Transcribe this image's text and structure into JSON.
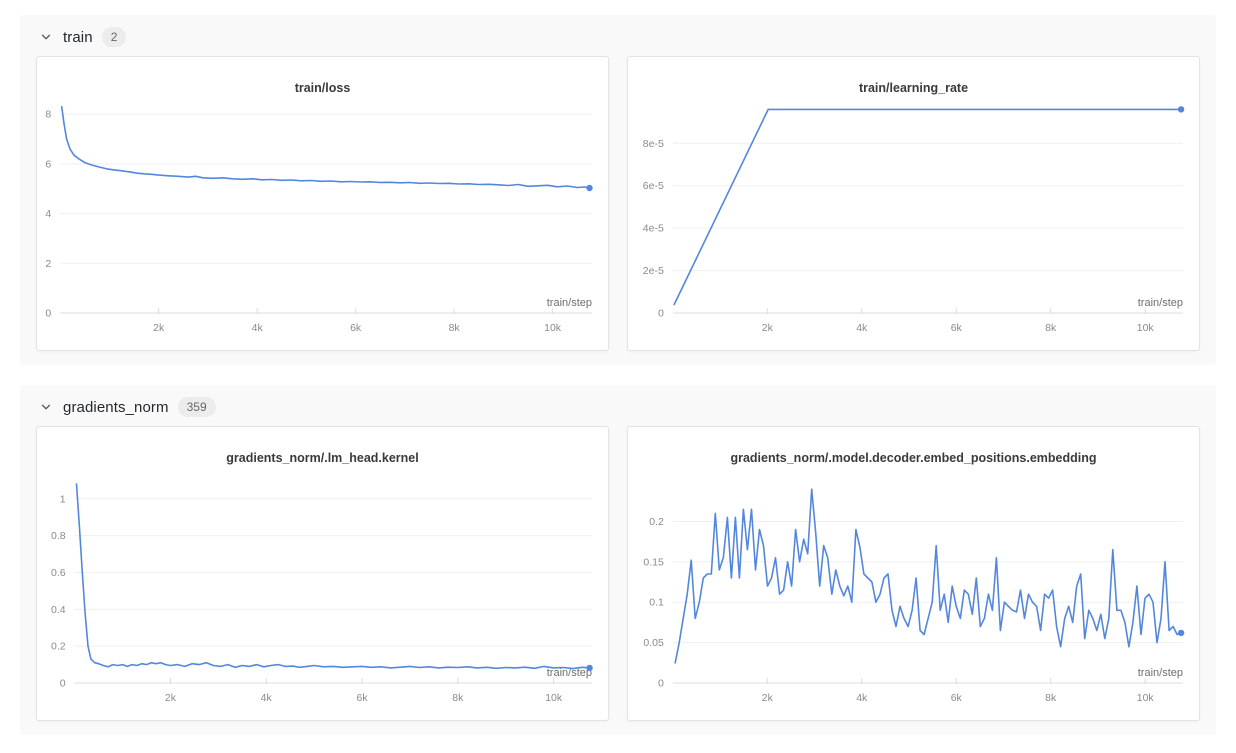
{
  "colors": {
    "line": "#5387dd",
    "grid": "#efefef",
    "axis": "#dcdcdc",
    "tick_label": "#8a8a8a",
    "axis_label": "#6e6e6e",
    "section_bg": "#f9f9f9",
    "card_border": "#e3e3e3"
  },
  "sections": [
    {
      "name": "train",
      "count": "2",
      "chart_indexes": [
        0,
        1
      ]
    },
    {
      "name": "gradients_norm",
      "count": "359",
      "chart_indexes": [
        2,
        3
      ]
    }
  ],
  "chart_data": [
    {
      "type": "line",
      "title": "train/loss",
      "xlabel": "train/step",
      "x_max": 10800,
      "y_max": 8.45,
      "grid": true,
      "end_dot": true,
      "x_ticks": [
        {
          "v": 2000,
          "label": "2k"
        },
        {
          "v": 4000,
          "label": "4k"
        },
        {
          "v": 6000,
          "label": "6k"
        },
        {
          "v": 8000,
          "label": "8k"
        },
        {
          "v": 10000,
          "label": "10k"
        }
      ],
      "y_ticks": [
        {
          "v": 0,
          "label": "0"
        },
        {
          "v": 2,
          "label": "2"
        },
        {
          "v": 4,
          "label": "4"
        },
        {
          "v": 6,
          "label": "6"
        },
        {
          "v": 8,
          "label": "8"
        }
      ],
      "points": [
        [
          30,
          8.3
        ],
        [
          80,
          7.6
        ],
        [
          130,
          7.0
        ],
        [
          200,
          6.6
        ],
        [
          280,
          6.35
        ],
        [
          380,
          6.2
        ],
        [
          500,
          6.05
        ],
        [
          650,
          5.95
        ],
        [
          800,
          5.87
        ],
        [
          950,
          5.8
        ],
        [
          1100,
          5.76
        ],
        [
          1250,
          5.72
        ],
        [
          1400,
          5.68
        ],
        [
          1550,
          5.63
        ],
        [
          1700,
          5.6
        ],
        [
          1850,
          5.58
        ],
        [
          2000,
          5.55
        ],
        [
          2200,
          5.52
        ],
        [
          2400,
          5.5
        ],
        [
          2600,
          5.47
        ],
        [
          2750,
          5.5
        ],
        [
          2900,
          5.44
        ],
        [
          3100,
          5.42
        ],
        [
          3300,
          5.44
        ],
        [
          3500,
          5.4
        ],
        [
          3700,
          5.38
        ],
        [
          3900,
          5.4
        ],
        [
          4100,
          5.36
        ],
        [
          4300,
          5.37
        ],
        [
          4500,
          5.34
        ],
        [
          4700,
          5.35
        ],
        [
          4900,
          5.32
        ],
        [
          5100,
          5.33
        ],
        [
          5300,
          5.3
        ],
        [
          5500,
          5.31
        ],
        [
          5700,
          5.28
        ],
        [
          5900,
          5.29
        ],
        [
          6100,
          5.27
        ],
        [
          6300,
          5.28
        ],
        [
          6500,
          5.25
        ],
        [
          6700,
          5.26
        ],
        [
          6900,
          5.24
        ],
        [
          7100,
          5.25
        ],
        [
          7300,
          5.22
        ],
        [
          7500,
          5.23
        ],
        [
          7700,
          5.21
        ],
        [
          7900,
          5.22
        ],
        [
          8100,
          5.19
        ],
        [
          8300,
          5.2
        ],
        [
          8500,
          5.17
        ],
        [
          8700,
          5.18
        ],
        [
          8900,
          5.16
        ],
        [
          9100,
          5.13
        ],
        [
          9300,
          5.17
        ],
        [
          9500,
          5.1
        ],
        [
          9700,
          5.12
        ],
        [
          9900,
          5.14
        ],
        [
          10100,
          5.08
        ],
        [
          10300,
          5.11
        ],
        [
          10500,
          5.05
        ],
        [
          10650,
          5.07
        ],
        [
          10750,
          5.03
        ]
      ]
    },
    {
      "type": "line",
      "title": "train/learning_rate",
      "xlabel": "train/step",
      "x_max": 10800,
      "y_max": 9.9e-05,
      "grid": true,
      "end_dot": true,
      "x_ticks": [
        {
          "v": 2000,
          "label": "2k"
        },
        {
          "v": 4000,
          "label": "4k"
        },
        {
          "v": 6000,
          "label": "6k"
        },
        {
          "v": 8000,
          "label": "8k"
        },
        {
          "v": 10000,
          "label": "10k"
        }
      ],
      "y_ticks": [
        {
          "v": 0,
          "label": "0"
        },
        {
          "v": 2e-05,
          "label": "2e-5"
        },
        {
          "v": 4e-05,
          "label": "4e-5"
        },
        {
          "v": 6e-05,
          "label": "6e-5"
        },
        {
          "v": 8e-05,
          "label": "8e-5"
        }
      ],
      "points": [
        [
          30,
          4e-06
        ],
        [
          2020,
          9.6e-05
        ],
        [
          10760,
          9.6e-05
        ]
      ]
    },
    {
      "type": "line",
      "title": "gradients_norm/.lm_head.kernel",
      "xlabel": "train/step",
      "x_max": 10800,
      "y_max": 1.14,
      "grid": true,
      "end_dot": true,
      "x_ticks": [
        {
          "v": 2000,
          "label": "2k"
        },
        {
          "v": 4000,
          "label": "4k"
        },
        {
          "v": 6000,
          "label": "6k"
        },
        {
          "v": 8000,
          "label": "8k"
        },
        {
          "v": 10000,
          "label": "10k"
        }
      ],
      "y_ticks": [
        {
          "v": 0,
          "label": "0"
        },
        {
          "v": 0.2,
          "label": "0.2"
        },
        {
          "v": 0.4,
          "label": "0.4"
        },
        {
          "v": 0.6,
          "label": "0.6"
        },
        {
          "v": 0.8,
          "label": "0.8"
        },
        {
          "v": 1,
          "label": "1"
        }
      ],
      "points": [
        [
          40,
          1.08
        ],
        [
          100,
          0.85
        ],
        [
          160,
          0.6
        ],
        [
          220,
          0.38
        ],
        [
          280,
          0.2
        ],
        [
          340,
          0.13
        ],
        [
          420,
          0.11
        ],
        [
          500,
          0.105
        ],
        [
          600,
          0.095
        ],
        [
          700,
          0.088
        ],
        [
          800,
          0.1
        ],
        [
          900,
          0.095
        ],
        [
          1000,
          0.1
        ],
        [
          1100,
          0.09
        ],
        [
          1200,
          0.1
        ],
        [
          1300,
          0.095
        ],
        [
          1400,
          0.105
        ],
        [
          1500,
          0.1
        ],
        [
          1600,
          0.11
        ],
        [
          1700,
          0.105
        ],
        [
          1800,
          0.11
        ],
        [
          1900,
          0.1
        ],
        [
          2000,
          0.095
        ],
        [
          2150,
          0.1
        ],
        [
          2300,
          0.09
        ],
        [
          2450,
          0.105
        ],
        [
          2600,
          0.1
        ],
        [
          2750,
          0.11
        ],
        [
          2900,
          0.095
        ],
        [
          3050,
          0.09
        ],
        [
          3200,
          0.1
        ],
        [
          3350,
          0.085
        ],
        [
          3500,
          0.095
        ],
        [
          3650,
          0.09
        ],
        [
          3800,
          0.1
        ],
        [
          3950,
          0.088
        ],
        [
          4100,
          0.095
        ],
        [
          4250,
          0.1
        ],
        [
          4400,
          0.09
        ],
        [
          4550,
          0.092
        ],
        [
          4700,
          0.085
        ],
        [
          4850,
          0.09
        ],
        [
          5000,
          0.095
        ],
        [
          5200,
          0.088
        ],
        [
          5400,
          0.09
        ],
        [
          5600,
          0.085
        ],
        [
          5800,
          0.088
        ],
        [
          6000,
          0.09
        ],
        [
          6200,
          0.085
        ],
        [
          6400,
          0.088
        ],
        [
          6600,
          0.082
        ],
        [
          6800,
          0.086
        ],
        [
          7000,
          0.09
        ],
        [
          7200,
          0.084
        ],
        [
          7400,
          0.088
        ],
        [
          7600,
          0.082
        ],
        [
          7800,
          0.086
        ],
        [
          8000,
          0.084
        ],
        [
          8200,
          0.088
        ],
        [
          8400,
          0.082
        ],
        [
          8600,
          0.085
        ],
        [
          8800,
          0.08
        ],
        [
          9000,
          0.084
        ],
        [
          9200,
          0.082
        ],
        [
          9400,
          0.086
        ],
        [
          9600,
          0.08
        ],
        [
          9800,
          0.09
        ],
        [
          10000,
          0.082
        ],
        [
          10200,
          0.084
        ],
        [
          10400,
          0.078
        ],
        [
          10600,
          0.085
        ],
        [
          10750,
          0.082
        ]
      ]
    },
    {
      "type": "line",
      "title": "gradients_norm/.model.decoder.embed_positions.embedding",
      "xlabel": "train/step",
      "x_max": 10800,
      "y_max": 0.26,
      "grid": true,
      "end_dot": true,
      "x_ticks": [
        {
          "v": 2000,
          "label": "2k"
        },
        {
          "v": 4000,
          "label": "4k"
        },
        {
          "v": 6000,
          "label": "6k"
        },
        {
          "v": 8000,
          "label": "8k"
        },
        {
          "v": 10000,
          "label": "10k"
        }
      ],
      "y_ticks": [
        {
          "v": 0,
          "label": "0"
        },
        {
          "v": 0.05,
          "label": "0.05"
        },
        {
          "v": 0.1,
          "label": "0.1"
        },
        {
          "v": 0.15,
          "label": "0.15"
        },
        {
          "v": 0.2,
          "label": "0.2"
        }
      ],
      "x0": 50,
      "dx": 85,
      "values": [
        0.025,
        0.05,
        0.08,
        0.11,
        0.152,
        0.08,
        0.1,
        0.13,
        0.135,
        0.135,
        0.21,
        0.14,
        0.155,
        0.205,
        0.13,
        0.205,
        0.13,
        0.215,
        0.165,
        0.215,
        0.14,
        0.19,
        0.17,
        0.12,
        0.13,
        0.155,
        0.11,
        0.115,
        0.15,
        0.12,
        0.19,
        0.15,
        0.178,
        0.16,
        0.24,
        0.186,
        0.12,
        0.17,
        0.155,
        0.11,
        0.14,
        0.12,
        0.108,
        0.12,
        0.1,
        0.19,
        0.168,
        0.135,
        0.13,
        0.125,
        0.1,
        0.11,
        0.13,
        0.135,
        0.09,
        0.07,
        0.095,
        0.08,
        0.07,
        0.09,
        0.13,
        0.065,
        0.06,
        0.08,
        0.1,
        0.17,
        0.09,
        0.11,
        0.075,
        0.12,
        0.095,
        0.08,
        0.115,
        0.11,
        0.085,
        0.13,
        0.07,
        0.08,
        0.11,
        0.09,
        0.155,
        0.065,
        0.1,
        0.095,
        0.09,
        0.088,
        0.115,
        0.08,
        0.11,
        0.1,
        0.095,
        0.065,
        0.11,
        0.105,
        0.115,
        0.07,
        0.045,
        0.08,
        0.095,
        0.075,
        0.12,
        0.135,
        0.055,
        0.09,
        0.08,
        0.065,
        0.085,
        0.055,
        0.08,
        0.165,
        0.09,
        0.09,
        0.075,
        0.045,
        0.075,
        0.12,
        0.06,
        0.105,
        0.11,
        0.1,
        0.05,
        0.08,
        0.15,
        0.065,
        0.07,
        0.06,
        0.062
      ]
    }
  ]
}
